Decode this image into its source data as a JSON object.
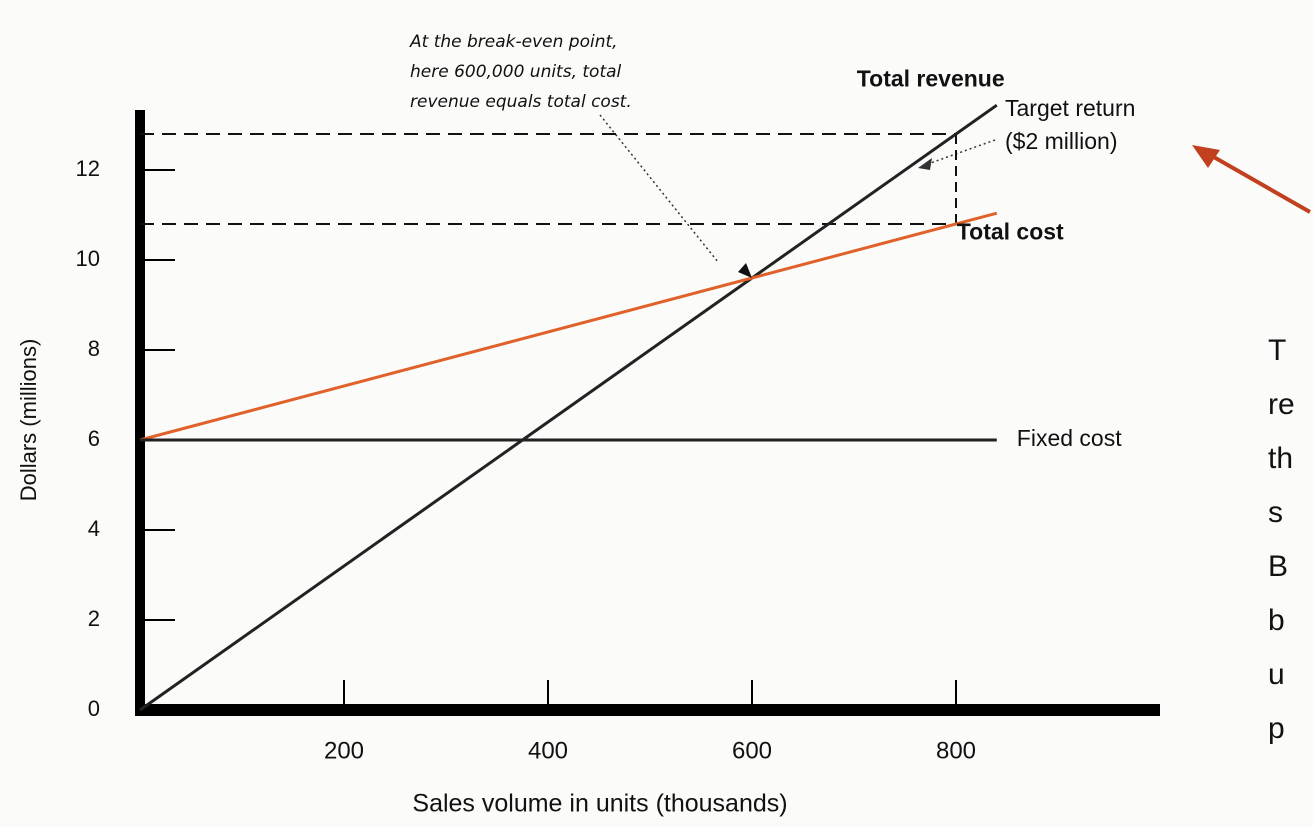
{
  "chart_data": {
    "type": "line",
    "x_label": "Sales volume in units (thousands)",
    "y_label": "Dollars (millions)",
    "xlim": [
      0,
      1000
    ],
    "ylim": [
      0,
      13
    ],
    "xticks": [
      200,
      400,
      600,
      800
    ],
    "yticks": [
      0,
      2,
      4,
      6,
      8,
      10,
      12
    ],
    "series": [
      {
        "name": "Total revenue",
        "color": "#222222",
        "x": [
          0,
          840
        ],
        "values": [
          0,
          13.44
        ]
      },
      {
        "name": "Total cost",
        "color": "#e0622a",
        "x": [
          0,
          840
        ],
        "values": [
          6,
          11.04
        ]
      },
      {
        "name": "Fixed cost",
        "color": "#222222",
        "x": [
          0,
          840
        ],
        "values": [
          6,
          6
        ]
      }
    ],
    "target_x": 800,
    "target_lines": [
      12.8,
      10.8
    ],
    "target_label": [
      "Target return",
      "($2 million)"
    ],
    "break_even": {
      "x": 600,
      "y": 9.6
    },
    "annotation": [
      "At the break-even point,",
      "here 600,000 units, total",
      "revenue equals total cost."
    ],
    "side_text": [
      "T",
      "re",
      "th",
      "s",
      "B",
      "b",
      "u",
      "p"
    ]
  }
}
